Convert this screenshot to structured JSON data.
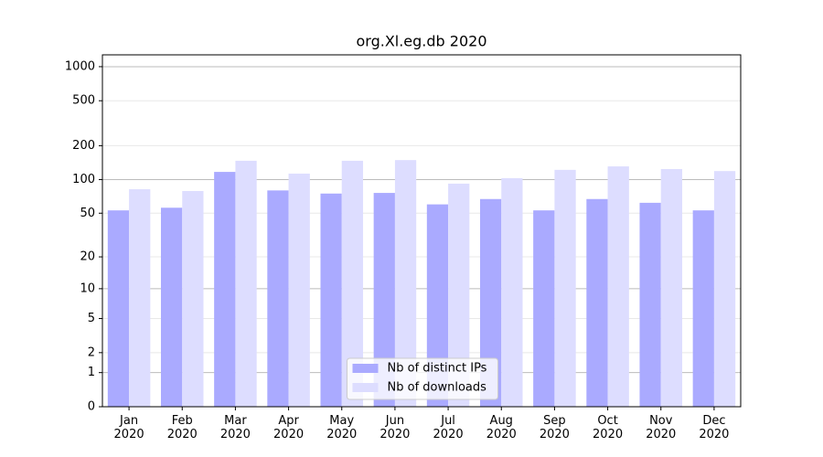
{
  "chart_data": {
    "type": "bar",
    "title": "org.Xl.eg.db 2020",
    "categories": [
      "Jan 2020",
      "Feb 2020",
      "Mar 2020",
      "Apr 2020",
      "May 2020",
      "Jun 2020",
      "Jul 2020",
      "Aug 2020",
      "Sep 2020",
      "Oct 2020",
      "Nov 2020",
      "Dec 2020"
    ],
    "series": [
      {
        "name": "Nb of distinct IPs",
        "color": "#aaaaff",
        "values": [
          53,
          56,
          117,
          80,
          75,
          76,
          60,
          67,
          53,
          67,
          62,
          53
        ]
      },
      {
        "name": "Nb of downloads",
        "color": "#ddddff",
        "values": [
          82,
          79,
          147,
          113,
          147,
          149,
          92,
          103,
          122,
          131,
          124,
          119
        ]
      }
    ],
    "yscale": "log1p",
    "ylim": [
      0,
      1272
    ],
    "yticks": [
      0,
      1,
      2,
      5,
      10,
      20,
      50,
      100,
      200,
      500,
      1000
    ],
    "grid": true,
    "legend": "lower center"
  }
}
